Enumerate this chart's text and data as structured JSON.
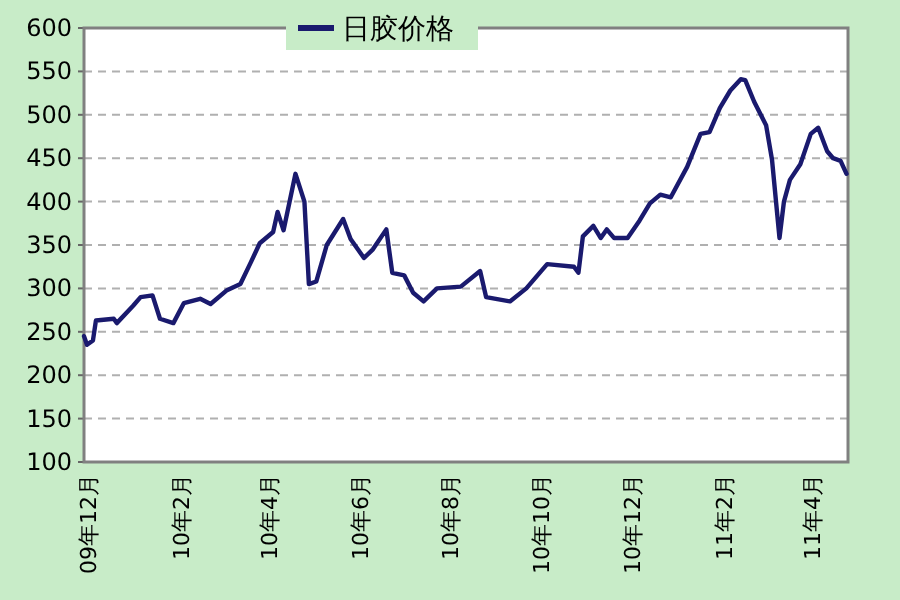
{
  "chart_data": {
    "type": "line",
    "legend": "top",
    "grid": "y",
    "line_style": "solid",
    "marker": "none",
    "xlim": [
      "2009-11-28",
      "2011-04-25"
    ],
    "xticks": [
      {
        "value": "2009-12-01",
        "label": "09年12月"
      },
      {
        "value": "2010-02-01",
        "label": "10年2月"
      },
      {
        "value": "2010-04-01",
        "label": "10年4月"
      },
      {
        "value": "2010-06-01",
        "label": "10年6月"
      },
      {
        "value": "2010-08-01",
        "label": "10年8月"
      },
      {
        "value": "2010-10-01",
        "label": "10年10月"
      },
      {
        "value": "2010-12-01",
        "label": "10年12月"
      },
      {
        "value": "2011-02-01",
        "label": "11年2月"
      },
      {
        "value": "2011-04-01",
        "label": "11年4月"
      }
    ],
    "ylim": [
      100,
      600
    ],
    "yticks": [
      100,
      150,
      200,
      250,
      300,
      350,
      400,
      450,
      500,
      550,
      600
    ],
    "series": [
      {
        "name": "日胶价格",
        "color": "#1a1a6e",
        "x": [
          "2009-11-28",
          "2009-11-30",
          "2009-12-04",
          "2009-12-06",
          "2009-12-18",
          "2009-12-20",
          "2009-12-31",
          "2010-01-05",
          "2010-01-13",
          "2010-01-18",
          "2010-01-27",
          "2010-02-03",
          "2010-02-14",
          "2010-02-21",
          "2010-03-04",
          "2010-03-13",
          "2010-03-20",
          "2010-03-26",
          "2010-04-04",
          "2010-04-07",
          "2010-04-11",
          "2010-04-19",
          "2010-04-25",
          "2010-04-28",
          "2010-05-03",
          "2010-05-10",
          "2010-05-21",
          "2010-05-26",
          "2010-06-04",
          "2010-06-10",
          "2010-06-19",
          "2010-06-23",
          "2010-07-01",
          "2010-07-07",
          "2010-07-14",
          "2010-07-23",
          "2010-08-08",
          "2010-08-21",
          "2010-08-25",
          "2010-09-10",
          "2010-09-21",
          "2010-10-05",
          "2010-10-23",
          "2010-10-26",
          "2010-10-29",
          "2010-11-05",
          "2010-11-10",
          "2010-11-14",
          "2010-11-19",
          "2010-11-28",
          "2010-12-06",
          "2010-12-13",
          "2010-12-20",
          "2010-12-27",
          "2011-01-07",
          "2011-01-16",
          "2011-01-22",
          "2011-01-29",
          "2011-02-05",
          "2011-02-12",
          "2011-02-15",
          "2011-02-21",
          "2011-03-01",
          "2011-03-05",
          "2011-03-10",
          "2011-03-13",
          "2011-03-17",
          "2011-03-24",
          "2011-03-31",
          "2011-04-05",
          "2011-04-11",
          "2011-04-15",
          "2011-04-20",
          "2011-04-24"
        ],
        "values": [
          245,
          235,
          240,
          263,
          265,
          260,
          280,
          290,
          292,
          265,
          260,
          283,
          288,
          282,
          298,
          305,
          330,
          352,
          365,
          388,
          367,
          432,
          400,
          305,
          308,
          350,
          380,
          357,
          335,
          345,
          368,
          318,
          315,
          295,
          285,
          300,
          302,
          320,
          290,
          285,
          300,
          328,
          325,
          318,
          360,
          372,
          358,
          368,
          358,
          358,
          378,
          398,
          408,
          405,
          440,
          478,
          480,
          508,
          528,
          541,
          540,
          515,
          488,
          448,
          358,
          400,
          425,
          443,
          478,
          485,
          458,
          450,
          447,
          432
        ]
      }
    ]
  }
}
